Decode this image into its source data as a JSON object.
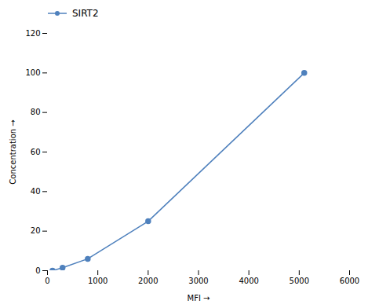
{
  "chart_data": {
    "type": "line",
    "x": [
      100,
      300,
      800,
      2000,
      5100
    ],
    "series": [
      {
        "name": "SIRT2",
        "color": "#4f81bd",
        "marker": "circle",
        "values": [
          0,
          1.5,
          6,
          25,
          100
        ]
      }
    ],
    "xlabel": "MFI",
    "ylabel": "Concentration",
    "xlim": [
      0,
      6000
    ],
    "ylim": [
      0,
      120
    ],
    "xticks": [
      0,
      1000,
      2000,
      3000,
      4000,
      5000,
      6000
    ],
    "yticks": [
      0,
      20,
      40,
      60,
      80,
      100,
      120
    ],
    "legend": "upper left"
  }
}
